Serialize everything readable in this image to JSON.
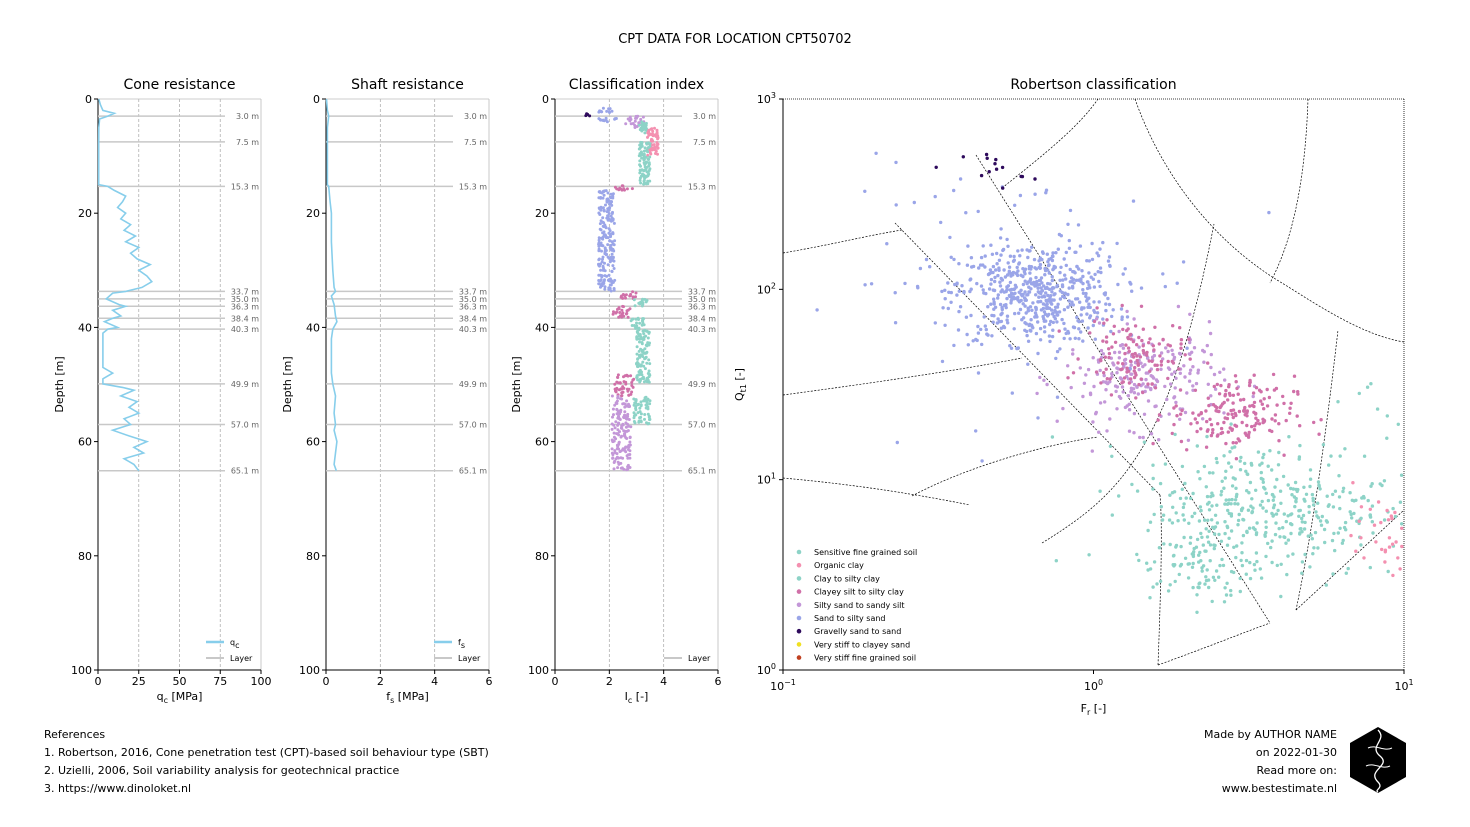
{
  "figure": {
    "title": "CPT DATA FOR LOCATION CPT50702",
    "references_title": "References",
    "references": [
      "1. Robertson, 2016, Cone penetration test (CPT)-based soil behaviour type (SBT)",
      "2. Uzielli, 2006, Soil variability analysis for geotechnical practice",
      "3. https://www.dinoloket.nl"
    ],
    "credits": [
      "Made by AUTHOR NAME",
      "on 2022-01-30",
      "Read more on:",
      "www.bestestimate.nl"
    ]
  },
  "colors": {
    "qc_line": "#87ceeb",
    "fs_line": "#87ceeb",
    "layer_line": "#c8c8c8",
    "soil": {
      "Sensitive fine grained soil": "#8dd3c7",
      "Organic clay": "#f490b0",
      "Clay to silty clay": "#8dd3c7",
      "Clayey silt to silty clay": "#d070a8",
      "Silty sand to sandy silt": "#c397d8",
      "Sand to silty sand": "#9aa5e8",
      "Gravelly sand to sand": "#2e0a5c",
      "Very stiff to clayey sand": "#f0e020",
      "Very stiff fine grained soil": "#c04020"
    }
  },
  "chart_data": [
    {
      "type": "line",
      "title": "Cone resistance",
      "xlabel": "q$_c$ [MPa]",
      "xlabel_main": "q",
      "xlabel_sub": "c",
      "xlabel_unit": " [MPa]",
      "ylabel": "Depth [m]",
      "xlim": [
        0,
        100
      ],
      "ylim": [
        100,
        0
      ],
      "xticks": [
        0,
        25,
        50,
        75,
        100
      ],
      "yticks": [
        0,
        20,
        40,
        60,
        80,
        100
      ],
      "grid": "x",
      "legend_position": "lower right",
      "legend": [
        "qc",
        "Layer"
      ],
      "legend_labels": {
        "main": "q",
        "sub": "c",
        "layer": "Layer"
      },
      "series": [
        {
          "name": "qc",
          "depth": [
            0.0,
            1.0,
            2.0,
            2.5,
            3.0,
            3.5,
            5.0,
            8.0,
            12.0,
            15.0,
            15.3,
            16.0,
            17.0,
            18.0,
            19.0,
            20.0,
            21.0,
            22.0,
            23.0,
            24.0,
            25.0,
            26.0,
            27.0,
            28.0,
            29.0,
            30.0,
            31.0,
            32.0,
            33.0,
            33.7,
            34.0,
            35.0,
            36.0,
            36.3,
            37.0,
            38.0,
            38.4,
            39.0,
            40.0,
            40.3,
            41.0,
            43.0,
            45.0,
            47.0,
            48.0,
            49.0,
            49.9,
            50.5,
            51.0,
            52.0,
            53.0,
            54.0,
            55.0,
            56.0,
            57.0,
            58.0,
            59.0,
            60.0,
            61.0,
            62.0,
            63.0,
            64.0,
            65.1
          ],
          "values": [
            0.5,
            1.5,
            3,
            10,
            6,
            1,
            0.5,
            0.4,
            0.4,
            0.4,
            6,
            10,
            17,
            15,
            12,
            17,
            14,
            20,
            16,
            23,
            17,
            25,
            20,
            24,
            32,
            25,
            30,
            33,
            27,
            17,
            9,
            5,
            13,
            17,
            9,
            14,
            9,
            4,
            12,
            6,
            3,
            3,
            3,
            3,
            9,
            3,
            3,
            15,
            22,
            14,
            24,
            19,
            25,
            16,
            20,
            9,
            19,
            30,
            22,
            28,
            16,
            22,
            25
          ]
        },
        {
          "name": "Layer",
          "values": [
            3.0,
            7.5,
            15.3,
            33.7,
            35.0,
            36.3,
            38.4,
            40.3,
            49.9,
            57.0,
            65.1
          ]
        }
      ]
    },
    {
      "type": "line",
      "title": "Shaft resistance",
      "xlabel": "f$_s$ [MPa]",
      "xlabel_main": "f",
      "xlabel_sub": "s",
      "xlabel_unit": " [MPa]",
      "ylabel": "Depth [m]",
      "xlim": [
        0,
        6
      ],
      "ylim": [
        100,
        0
      ],
      "xticks": [
        0,
        2,
        4,
        6
      ],
      "yticks": [
        0,
        20,
        40,
        60,
        80,
        100
      ],
      "grid": "x",
      "legend_position": "lower right",
      "legend": [
        "fs",
        "Layer"
      ],
      "legend_labels": {
        "main": "f",
        "sub": "s",
        "layer": "Layer"
      },
      "series": [
        {
          "name": "fs",
          "depth": [
            0.0,
            2.0,
            3.0,
            5.0,
            10.0,
            15.0,
            15.3,
            18.0,
            20.0,
            25.0,
            30.0,
            33.0,
            33.7,
            34.5,
            36.0,
            38.0,
            39.0,
            40.3,
            42.0,
            45.0,
            48.0,
            49.9,
            52.0,
            55.0,
            57.0,
            58.0,
            60.0,
            62.0,
            64.0,
            65.1
          ],
          "values": [
            0.02,
            0.05,
            0.1,
            0.05,
            0.05,
            0.05,
            0.1,
            0.15,
            0.2,
            0.2,
            0.25,
            0.3,
            0.35,
            0.2,
            0.3,
            0.35,
            0.4,
            0.25,
            0.2,
            0.2,
            0.2,
            0.25,
            0.35,
            0.3,
            0.35,
            0.3,
            0.4,
            0.35,
            0.3,
            0.38
          ]
        },
        {
          "name": "Layer",
          "values": [
            3.0,
            7.5,
            15.3,
            33.7,
            35.0,
            36.3,
            38.4,
            40.3,
            49.9,
            57.0,
            65.1
          ]
        }
      ]
    },
    {
      "type": "scatter",
      "title": "Classification index",
      "xlabel": "I$_c$ [-]",
      "xlabel_main": "I",
      "xlabel_sub": "c",
      "xlabel_unit": " [-]",
      "ylabel": "Depth [m]",
      "xlim": [
        0,
        6
      ],
      "ylim": [
        100,
        0
      ],
      "xticks": [
        0,
        2,
        4,
        6
      ],
      "yticks": [
        0,
        20,
        40,
        60,
        80,
        100
      ],
      "grid": "x",
      "legend_position": "lower right",
      "legend": [
        "Layer"
      ],
      "legend_labels": {
        "layer": "Layer"
      },
      "series": [
        {
          "name": "Ic",
          "segments": [
            {
              "from": 1.5,
              "to": 2.5,
              "ic": [
                1.5,
                2.1
              ],
              "soil": "Sand to silty sand"
            },
            {
              "from": 2.5,
              "to": 3.0,
              "ic": [
                1.1,
                1.3
              ],
              "soil": "Gravelly sand to sand"
            },
            {
              "from": 3.0,
              "to": 4.0,
              "ic": [
                1.6,
                2.3
              ],
              "soil": "Sand to silty sand"
            },
            {
              "from": 3.0,
              "to": 5.0,
              "ic": [
                2.6,
                3.3
              ],
              "soil": "Silty sand to sandy silt"
            },
            {
              "from": 4.0,
              "to": 6.0,
              "ic": [
                3.1,
                3.4
              ],
              "soil": "Clay to silty clay"
            },
            {
              "from": 5.0,
              "to": 10.0,
              "ic": [
                3.4,
                3.8
              ],
              "soil": "Organic clay"
            },
            {
              "from": 7.5,
              "to": 15.0,
              "ic": [
                3.1,
                3.5
              ],
              "soil": "Clay to silty clay"
            },
            {
              "from": 15.0,
              "to": 16.0,
              "ic": [
                2.2,
                2.9
              ],
              "soil": "Clayey silt to silty clay"
            },
            {
              "from": 16.0,
              "to": 33.7,
              "ic": [
                1.6,
                2.2
              ],
              "soil": "Sand to silty sand"
            },
            {
              "from": 33.7,
              "to": 35.0,
              "ic": [
                2.4,
                3.0
              ],
              "soil": "Clayey silt to silty clay"
            },
            {
              "from": 35.0,
              "to": 36.3,
              "ic": [
                2.9,
                3.4
              ],
              "soil": "Clay to silty clay"
            },
            {
              "from": 36.3,
              "to": 38.4,
              "ic": [
                2.1,
                2.8
              ],
              "soil": "Clayey silt to silty clay"
            },
            {
              "from": 38.4,
              "to": 40.3,
              "ic": [
                2.8,
                3.3
              ],
              "soil": "Clay to silty clay"
            },
            {
              "from": 40.3,
              "to": 49.9,
              "ic": [
                3.0,
                3.5
              ],
              "soil": "Clay to silty clay"
            },
            {
              "from": 48.0,
              "to": 52.0,
              "ic": [
                2.2,
                2.9
              ],
              "soil": "Clayey silt to silty clay"
            },
            {
              "from": 52.0,
              "to": 57.0,
              "ic": [
                2.1,
                2.8
              ],
              "soil": "Silty sand to sandy silt"
            },
            {
              "from": 52.0,
              "to": 57.0,
              "ic": [
                2.9,
                3.5
              ],
              "soil": "Clay to silty clay"
            },
            {
              "from": 57.0,
              "to": 65.1,
              "ic": [
                2.1,
                2.8
              ],
              "soil": "Silty sand to sandy silt"
            }
          ]
        },
        {
          "name": "Layer",
          "values": [
            3.0,
            7.5,
            15.3,
            33.7,
            35.0,
            36.3,
            38.4,
            40.3,
            49.9,
            57.0,
            65.1
          ]
        }
      ]
    },
    {
      "type": "scatter",
      "title": "Robertson classification",
      "xlabel": "F$_r$ [-]",
      "xlabel_main": "F",
      "xlabel_sub": "r",
      "xlabel_unit": " [-]",
      "ylabel": "Q$_{t1}$ [-]",
      "ylabel_main": "Q",
      "ylabel_sub": "t1",
      "ylabel_unit": " [-]",
      "x_scale": "log",
      "y_scale": "log",
      "xlim": [
        0.1,
        10
      ],
      "ylim": [
        1,
        1000
      ],
      "xticks": [
        0.1,
        1,
        10
      ],
      "yticks": [
        1,
        10,
        100,
        1000
      ],
      "xtick_labels": [
        {
          "base": "10",
          "exp": "−1"
        },
        {
          "base": "10",
          "exp": "0"
        },
        {
          "base": "10",
          "exp": "1"
        }
      ],
      "ytick_labels": [
        {
          "base": "10",
          "exp": "0"
        },
        {
          "base": "10",
          "exp": "1"
        },
        {
          "base": "10",
          "exp": "2"
        },
        {
          "base": "10",
          "exp": "3"
        }
      ],
      "grid": false,
      "legend_position": "lower left",
      "legend": [
        "Sensitive fine grained soil",
        "Organic clay",
        "Clay to silty clay",
        "Clayey silt to silty clay",
        "Silty sand to sandy silt",
        "Sand to silty sand",
        "Gravelly sand to sand",
        "Very stiff to clayey sand",
        "Very stiff fine grained soil"
      ],
      "clusters": [
        {
          "soil": "Sand to silty sand",
          "fr": 0.65,
          "qt": 95,
          "sfr": 0.13,
          "sqt": 0.13,
          "n": 520
        },
        {
          "soil": "Sand to silty sand",
          "fr": 0.6,
          "qt": 110,
          "sfr": 0.3,
          "sqt": 0.3,
          "n": 100
        },
        {
          "soil": "Gravelly sand to sand",
          "fr": 0.48,
          "qt": 430,
          "sfr": 0.05,
          "sqt": 0.05,
          "n": 14
        },
        {
          "soil": "Silty sand to sandy silt",
          "fr": 1.45,
          "qt": 34,
          "sfr": 0.13,
          "sqt": 0.13,
          "n": 230
        },
        {
          "soil": "Clayey silt to silty clay",
          "fr": 1.35,
          "qt": 45,
          "sfr": 0.08,
          "sqt": 0.1,
          "n": 120
        },
        {
          "soil": "Clayey silt to silty clay",
          "fr": 2.8,
          "qt": 22,
          "sfr": 0.1,
          "sqt": 0.1,
          "n": 170
        },
        {
          "soil": "Clay to silty clay",
          "fr": 3.5,
          "qt": 7,
          "sfr": 0.2,
          "sqt": 0.18,
          "n": 400
        },
        {
          "soil": "Clay to silty clay",
          "fr": 2.2,
          "qt": 3.5,
          "sfr": 0.08,
          "sqt": 0.1,
          "n": 70
        },
        {
          "soil": "Clay to silty clay",
          "fr": 8.5,
          "qt": 12,
          "sfr": 0.08,
          "sqt": 0.25,
          "n": 30
        },
        {
          "soil": "Organic clay",
          "fr": 9.0,
          "qt": 5,
          "sfr": 0.06,
          "sqt": 0.08,
          "n": 40
        }
      ]
    }
  ]
}
